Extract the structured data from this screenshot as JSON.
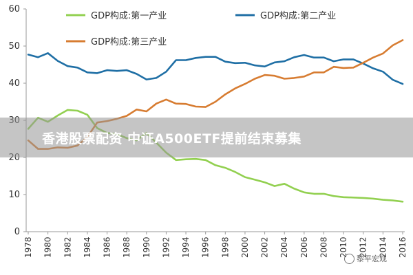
{
  "chart_data": {
    "type": "line",
    "title": "",
    "xlabel": "",
    "ylabel": "",
    "ylim": [
      0,
      60
    ],
    "yticks": [
      0,
      10,
      20,
      30,
      40,
      50,
      60
    ],
    "xlim": [
      1978,
      2016
    ],
    "xticks": [
      1978,
      1980,
      1982,
      1984,
      1986,
      1988,
      1990,
      1992,
      1994,
      1996,
      1998,
      2000,
      2002,
      2004,
      2006,
      2008,
      2010,
      2012,
      2014,
      2016
    ],
    "grid": false,
    "legend_position": "top",
    "x": [
      1978,
      1979,
      1980,
      1981,
      1982,
      1983,
      1984,
      1985,
      1986,
      1987,
      1988,
      1989,
      1990,
      1991,
      1992,
      1993,
      1994,
      1995,
      1996,
      1997,
      1998,
      1999,
      2000,
      2001,
      2002,
      2003,
      2004,
      2005,
      2006,
      2007,
      2008,
      2009,
      2010,
      2011,
      2012,
      2013,
      2014,
      2015,
      2016
    ],
    "series": [
      {
        "name": "GDP构成:第一产业",
        "color": "#92d050",
        "values": [
          27.7,
          30.7,
          29.6,
          31.3,
          32.8,
          32.6,
          31.5,
          27.9,
          26.6,
          26.3,
          25.2,
          24.6,
          26.6,
          24.0,
          21.3,
          19.3,
          19.5,
          19.6,
          19.3,
          17.9,
          17.2,
          16.1,
          14.7,
          14.0,
          13.3,
          12.3,
          12.9,
          11.6,
          10.6,
          10.2,
          10.2,
          9.6,
          9.3,
          9.2,
          9.1,
          8.9,
          8.6,
          8.4,
          8.1
        ]
      },
      {
        "name": "GDP构成:第二产业",
        "color": "#1f6fa5",
        "values": [
          47.7,
          47.0,
          48.1,
          46.0,
          44.6,
          44.2,
          42.9,
          42.7,
          43.5,
          43.3,
          43.5,
          42.5,
          41.0,
          41.4,
          43.1,
          46.2,
          46.2,
          46.8,
          47.1,
          47.1,
          45.8,
          45.4,
          45.5,
          44.8,
          44.5,
          45.6,
          45.9,
          47.0,
          47.6,
          46.9,
          46.9,
          45.9,
          46.4,
          46.4,
          45.3,
          44.0,
          43.1,
          40.9,
          39.8
        ]
      },
      {
        "name": "GDP构成:第三产业",
        "color": "#d77c31",
        "values": [
          24.6,
          22.3,
          22.3,
          22.7,
          22.6,
          23.2,
          25.5,
          29.4,
          29.8,
          30.4,
          31.2,
          32.9,
          32.4,
          34.5,
          35.6,
          34.5,
          34.4,
          33.7,
          33.6,
          35.0,
          37.0,
          38.6,
          39.8,
          41.2,
          42.2,
          42.0,
          41.2,
          41.4,
          41.8,
          42.9,
          42.9,
          44.4,
          44.1,
          44.2,
          45.5,
          46.9,
          48.0,
          50.2,
          51.6
        ]
      }
    ]
  },
  "overlay": {
    "title": "香港股票配资 中证A500ETF提前结束募集"
  },
  "watermark": {
    "text": "黎平宏观"
  }
}
